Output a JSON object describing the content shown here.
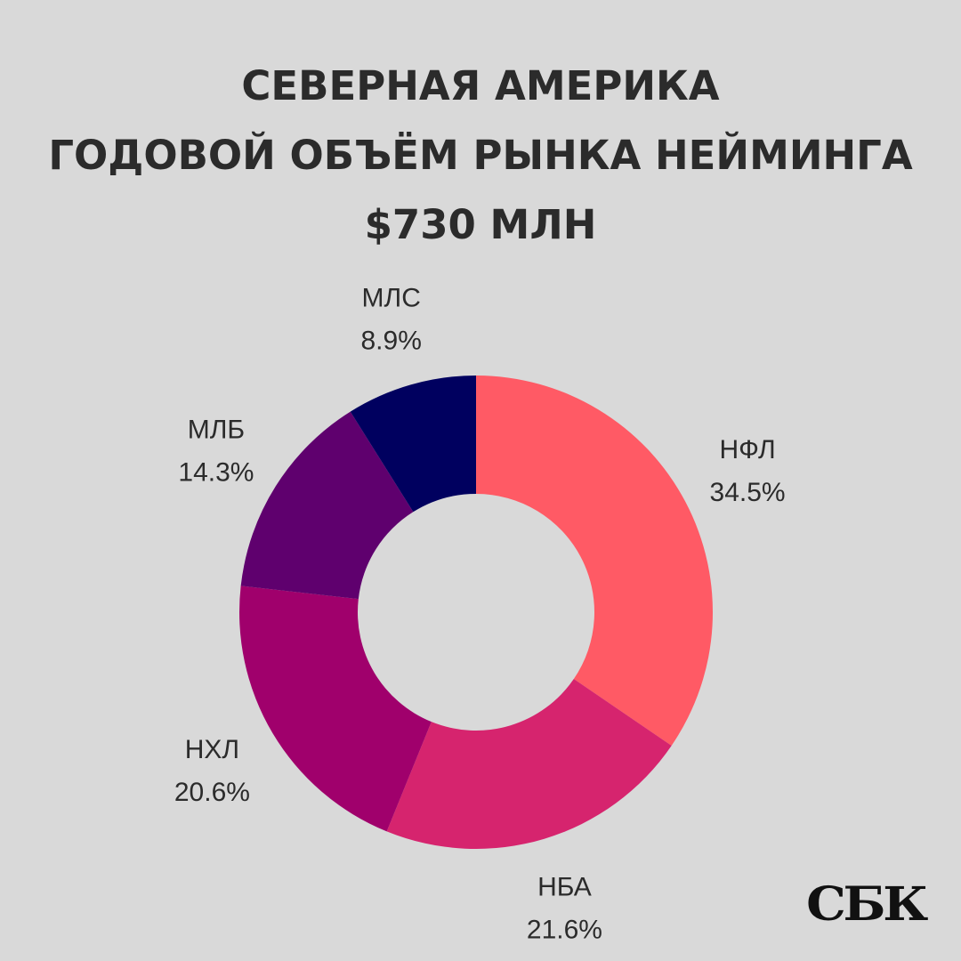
{
  "header": {
    "line1": "СЕВЕРНАЯ АМЕРИКА",
    "line2": "ГОДОВОЙ ОБЪЁМ РЫНКА НЕЙМИНГА",
    "line3": "$730 МЛН"
  },
  "logo": {
    "text": "СБК"
  },
  "colors": {
    "background": "#d9d9d9",
    "text": "#2b2b2b"
  },
  "chart_data": {
    "type": "pie",
    "donut": true,
    "title": "",
    "slices": [
      {
        "label": "НФЛ",
        "value": 34.5,
        "value_label": "34.5%",
        "color": "#ff5a65"
      },
      {
        "label": "НБА",
        "value": 21.6,
        "value_label": "21.6%",
        "color": "#d6246e"
      },
      {
        "label": "НХЛ",
        "value": 20.6,
        "value_label": "20.6%",
        "color": "#a0006c"
      },
      {
        "label": "МЛБ",
        "value": 14.3,
        "value_label": "14.3%",
        "color": "#5f006e"
      },
      {
        "label": "МЛС",
        "value": 8.9,
        "value_label": "8.9%",
        "color": "#00005f"
      }
    ]
  }
}
